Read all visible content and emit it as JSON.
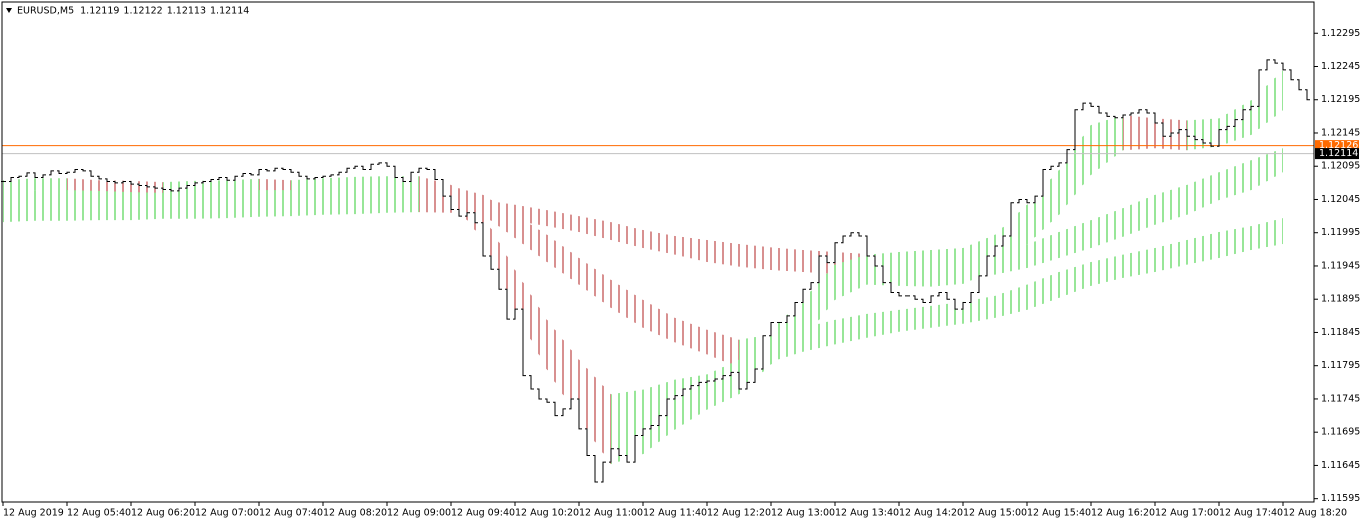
{
  "chart_data": {
    "type": "ohlc",
    "symbol": "EURUSD,M5",
    "header_values": [
      1.12119,
      1.12122,
      1.12113,
      1.12114
    ],
    "xlim": [
      0,
      164
    ],
    "ylim": [
      1.1159,
      1.12342
    ],
    "yticks": [
      1.12295,
      1.12245,
      1.12195,
      1.12145,
      1.12095,
      1.12045,
      1.11995,
      1.11945,
      1.11895,
      1.11845,
      1.11795,
      1.11745,
      1.11695,
      1.11645,
      1.11595
    ],
    "xticks": [
      {
        "value": 0,
        "label": "12 Aug 2019"
      },
      {
        "value": 8,
        "label": "12 Aug 05:40"
      },
      {
        "value": 16,
        "label": "12 Aug 06:20"
      },
      {
        "value": 24,
        "label": "12 Aug 07:00"
      },
      {
        "value": 32,
        "label": "12 Aug 07:40"
      },
      {
        "value": 40,
        "label": "12 Aug 08:20"
      },
      {
        "value": 48,
        "label": "12 Aug 09:00"
      },
      {
        "value": 56,
        "label": "12 Aug 09:40"
      },
      {
        "value": 64,
        "label": "12 Aug 10:20"
      },
      {
        "value": 72,
        "label": "12 Aug 11:00"
      },
      {
        "value": 80,
        "label": "12 Aug 11:40"
      },
      {
        "value": 88,
        "label": "12 Aug 12:20"
      },
      {
        "value": 96,
        "label": "12 Aug 13:00"
      },
      {
        "value": 104,
        "label": "12 Aug 13:40"
      },
      {
        "value": 112,
        "label": "12 Aug 14:20"
      },
      {
        "value": 120,
        "label": "12 Aug 15:00"
      },
      {
        "value": 128,
        "label": "12 Aug 15:40"
      },
      {
        "value": 136,
        "label": "12 Aug 16:20"
      },
      {
        "value": 144,
        "label": "12 Aug 17:00"
      },
      {
        "value": 152,
        "label": "12 Aug 17:40"
      },
      {
        "value": 160,
        "label": "12 Aug 18:20"
      }
    ],
    "bar_color": "#000000",
    "close": [
      1.12072,
      1.12078,
      1.1208,
      1.12085,
      1.12078,
      1.12082,
      1.12088,
      1.12084,
      1.12086,
      1.1209,
      1.12088,
      1.1208,
      1.12076,
      1.12072,
      1.1207,
      1.12072,
      1.12068,
      1.12066,
      1.12064,
      1.12062,
      1.1206,
      1.12058,
      1.12062,
      1.12066,
      1.1207,
      1.12072,
      1.12075,
      1.12078,
      1.12074,
      1.1208,
      1.12084,
      1.12082,
      1.1209,
      1.12088,
      1.12092,
      1.1209,
      1.12086,
      1.1208,
      1.12076,
      1.12078,
      1.1208,
      1.12082,
      1.12086,
      1.12092,
      1.12095,
      1.1209,
      1.12098,
      1.121,
      1.12095,
      1.12078,
      1.12072,
      1.12086,
      1.12092,
      1.1209,
      1.12075,
      1.1205,
      1.1203,
      1.1202,
      1.12025,
      1.1201,
      1.1196,
      1.1194,
      1.1191,
      1.11865,
      1.1188,
      1.1178,
      1.1176,
      1.11745,
      1.1174,
      1.1172,
      1.1173,
      1.11745,
      1.117,
      1.1166,
      1.1162,
      1.1165,
      1.1167,
      1.1166,
      1.1165,
      1.1169,
      1.117,
      1.11705,
      1.1172,
      1.11745,
      1.1175,
      1.1176,
      1.11765,
      1.1177,
      1.11772,
      1.11775,
      1.1178,
      1.11785,
      1.1176,
      1.1177,
      1.1179,
      1.1184,
      1.1186,
      1.1186,
      1.1187,
      1.1189,
      1.1191,
      1.1192,
      1.1196,
      1.1195,
      1.1198,
      1.1199,
      1.11995,
      1.1199,
      1.1196,
      1.11945,
      1.1192,
      1.11905,
      1.119,
      1.119,
      1.11895,
      1.1189,
      1.119,
      1.11905,
      1.11895,
      1.1188,
      1.1189,
      1.11905,
      1.1193,
      1.1196,
      1.11975,
      1.1199,
      1.1204,
      1.12045,
      1.1204,
      1.1205,
      1.1209,
      1.12095,
      1.121,
      1.1212,
      1.1218,
      1.1219,
      1.12185,
      1.12175,
      1.1217,
      1.12168,
      1.12172,
      1.12175,
      1.1218,
      1.12175,
      1.1216,
      1.1214,
      1.12145,
      1.1215,
      1.1214,
      1.12135,
      1.1213,
      1.12125,
      1.1215,
      1.12155,
      1.12165,
      1.1218,
      1.12185,
      1.1224,
      1.12255,
      1.1225,
      1.1224,
      1.12225,
      1.1221,
      1.12195
    ],
    "up_color": "#32cd32",
    "down_color": "#b22222",
    "band_x": [
      0,
      4,
      8,
      12,
      16,
      20,
      24,
      28,
      32,
      36,
      40,
      44,
      48,
      52,
      56,
      60,
      64,
      68,
      72,
      76,
      80,
      84,
      88,
      92,
      96,
      100,
      104,
      108,
      112,
      116,
      120,
      124,
      128,
      132,
      136,
      140,
      144,
      148,
      152,
      156,
      160
    ],
    "bands": [
      {
        "upper": [
          1.12041,
          1.12041,
          1.12043,
          1.12043,
          1.12044,
          1.12044,
          1.12046,
          1.12046,
          1.12047,
          1.12049,
          1.1205,
          1.12052,
          1.12053,
          1.12055,
          1.1205,
          1.12044,
          1.12037,
          1.12029,
          1.1202,
          1.12011,
          1.11999,
          1.1199,
          1.11984,
          1.11978,
          1.11973,
          1.11969,
          1.11966,
          1.11963,
          1.1196,
          1.11959,
          1.11957,
          1.11962,
          1.11977,
          1.11996,
          1.12014,
          1.12032,
          1.12052,
          1.12067,
          1.12086,
          1.12104,
          1.12122
        ],
        "lower": [
          1.12011,
          1.12013,
          1.12013,
          1.12014,
          1.12014,
          1.12016,
          1.12016,
          1.12017,
          1.12019,
          1.1202,
          1.12022,
          1.12023,
          1.12025,
          1.12026,
          1.12025,
          1.1202,
          1.12013,
          1.12005,
          1.11996,
          1.11984,
          1.11972,
          1.11962,
          1.11951,
          1.11944,
          1.11939,
          1.11936,
          1.11933,
          1.11932,
          1.1193,
          1.11929,
          1.11927,
          1.11932,
          1.11942,
          1.11957,
          1.11972,
          1.11989,
          1.12007,
          1.12022,
          1.12044,
          1.12059,
          1.12086
        ]
      },
      {
        "upper": [
          1.12059,
          1.12059,
          1.12061,
          1.12061,
          1.12062,
          1.12062,
          1.12064,
          1.12064,
          1.12065,
          1.12065,
          1.12067,
          1.12067,
          1.12068,
          1.12068,
          1.12065,
          1.12052,
          1.12022,
          1.11992,
          1.11957,
          1.11924,
          1.11894,
          1.11867,
          1.11849,
          1.11834,
          1.11842,
          1.11852,
          1.11864,
          1.11873,
          1.11879,
          1.11885,
          1.11891,
          1.119,
          1.11917,
          1.11936,
          1.11951,
          1.11962,
          1.11972,
          1.11984,
          1.11996,
          1.12005,
          1.12017
        ],
        "lower": [
          1.12037,
          1.12037,
          1.12038,
          1.12038,
          1.1204,
          1.1204,
          1.12041,
          1.12041,
          1.12043,
          1.12044,
          1.12046,
          1.12046,
          1.12047,
          1.12049,
          1.12044,
          1.12022,
          1.11987,
          1.11951,
          1.11917,
          1.11882,
          1.11852,
          1.1183,
          1.11812,
          1.11792,
          1.11801,
          1.11816,
          1.11827,
          1.11837,
          1.11846,
          1.11852,
          1.11858,
          1.11867,
          1.11879,
          1.11897,
          1.11915,
          1.11927,
          1.11936,
          1.11947,
          1.11957,
          1.11969,
          1.11978
        ]
      },
      {
        "upper": [
          1.12074,
          1.12077,
          1.12077,
          1.12074,
          1.12073,
          1.12071,
          1.12073,
          1.12074,
          1.12076,
          1.12074,
          1.12077,
          1.12079,
          1.1208,
          1.1208,
          1.12067,
          1.12022,
          1.11939,
          1.11864,
          1.11804,
          1.11752,
          1.11759,
          1.11774,
          1.11782,
          1.11804,
          1.11849,
          1.11894,
          1.11947,
          1.11962,
          1.11966,
          1.11969,
          1.11972,
          1.11992,
          1.12037,
          1.12089,
          1.12157,
          1.12172,
          1.12167,
          1.12164,
          1.12167,
          1.12194,
          1.12239
        ],
        "lower": [
          1.12056,
          1.12059,
          1.12059,
          1.12058,
          1.12056,
          1.12055,
          1.12056,
          1.12058,
          1.12059,
          1.12059,
          1.12061,
          1.12062,
          1.12064,
          1.12065,
          1.12044,
          1.11984,
          1.11879,
          1.11789,
          1.11714,
          1.11647,
          1.11662,
          1.11699,
          1.11729,
          1.11752,
          1.11797,
          1.11834,
          1.11894,
          1.11917,
          1.11915,
          1.11914,
          1.11918,
          1.11939,
          1.11977,
          1.12022,
          1.12082,
          1.12119,
          1.12122,
          1.12119,
          1.12125,
          1.12142,
          1.12179
        ]
      }
    ],
    "price_lines": [
      {
        "value": 1.12126,
        "color": "#ff6a00",
        "label_color": "#ff6a00"
      },
      {
        "value": 1.12114,
        "color": "#c0c0c0",
        "label_color": "#000000"
      }
    ]
  }
}
